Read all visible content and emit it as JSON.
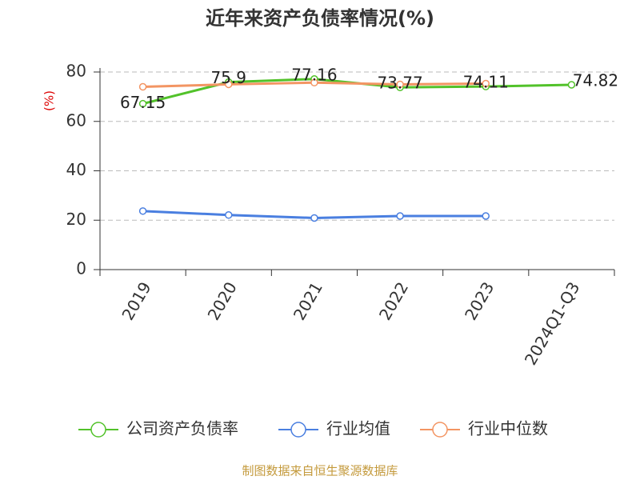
{
  "chart_data": {
    "type": "line",
    "title": "近年来资产负债率情况(%)",
    "y_label": "(%)",
    "source": "制图数据来自恒生聚源数据库",
    "categories": [
      "2019",
      "2020",
      "2021",
      "2022",
      "2023",
      "2024Q1-Q3"
    ],
    "series": [
      {
        "name": "公司资产负债率",
        "color": "#52c22a",
        "data_labels": true,
        "values": [
          67.15,
          75.9,
          77.16,
          73.77,
          74.11,
          74.82
        ]
      },
      {
        "name": "行业均值",
        "color": "#4a7fe0",
        "data_labels": false,
        "values": [
          23.7,
          22.1,
          20.9,
          21.7,
          21.7,
          null
        ]
      },
      {
        "name": "行业中位数",
        "color": "#f39563",
        "data_labels": false,
        "values": [
          74,
          75,
          75.7,
          75,
          75.3,
          null
        ]
      }
    ],
    "ylim": [
      0,
      80
    ],
    "yticks": [
      0,
      20,
      40,
      60,
      80
    ],
    "grid": true
  }
}
